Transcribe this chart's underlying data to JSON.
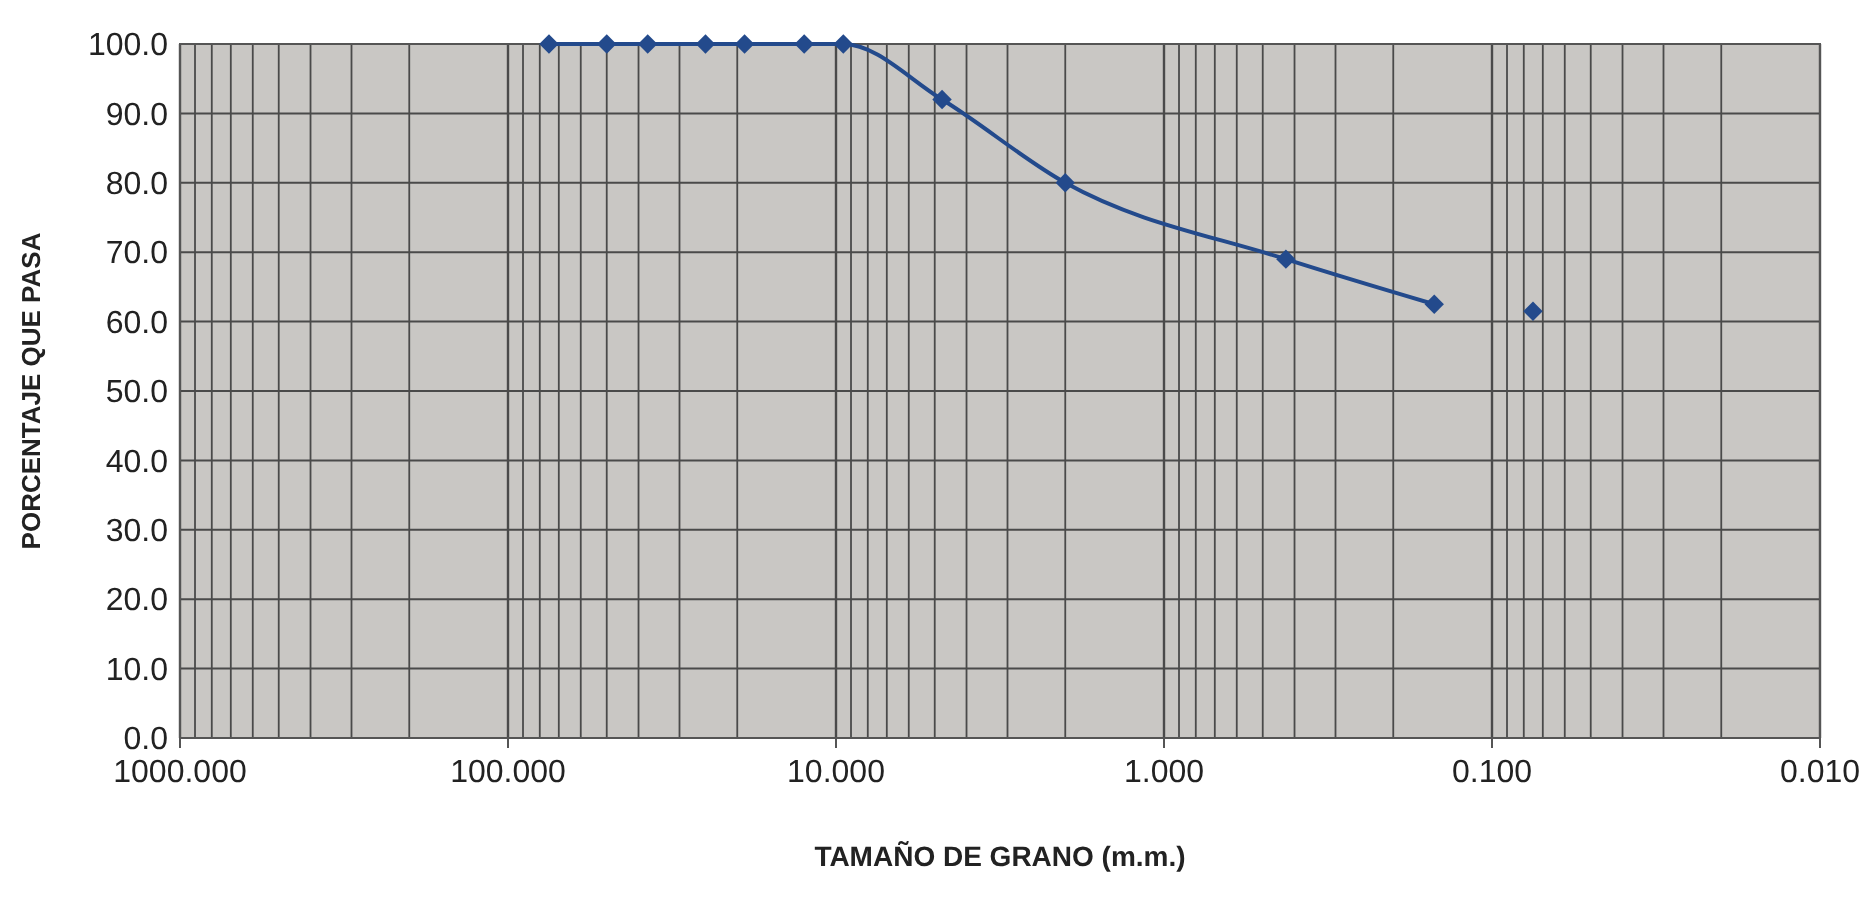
{
  "chart_data": {
    "type": "line",
    "xlabel": "TAMAÑO DE GRANO (m.m.)",
    "ylabel": "PORCENTAJE QUE PASA",
    "log": "x",
    "grid": true,
    "marker": "diamond",
    "line_style": "solid",
    "xlim": [
      1000,
      0.01
    ],
    "ylim": [
      0,
      100
    ],
    "xticks": [
      {
        "value": 1000,
        "label": "1000.000"
      },
      {
        "value": 900,
        "label": null
      },
      {
        "value": 800,
        "label": null
      },
      {
        "value": 700,
        "label": null
      },
      {
        "value": 600,
        "label": null
      },
      {
        "value": 500,
        "label": null
      },
      {
        "value": 400,
        "label": null
      },
      {
        "value": 300,
        "label": null
      },
      {
        "value": 200,
        "label": null
      },
      {
        "value": 100,
        "label": "100.000"
      },
      {
        "value": 90,
        "label": null
      },
      {
        "value": 80,
        "label": null
      },
      {
        "value": 70,
        "label": null
      },
      {
        "value": 60,
        "label": null
      },
      {
        "value": 50,
        "label": null
      },
      {
        "value": 40,
        "label": null
      },
      {
        "value": 30,
        "label": null
      },
      {
        "value": 20,
        "label": null
      },
      {
        "value": 10,
        "label": "10.000"
      },
      {
        "value": 9,
        "label": null
      },
      {
        "value": 8,
        "label": null
      },
      {
        "value": 7,
        "label": null
      },
      {
        "value": 6,
        "label": null
      },
      {
        "value": 5,
        "label": null
      },
      {
        "value": 4,
        "label": null
      },
      {
        "value": 3,
        "label": null
      },
      {
        "value": 2,
        "label": null
      },
      {
        "value": 1,
        "label": "1.000"
      },
      {
        "value": 0.9,
        "label": null
      },
      {
        "value": 0.8,
        "label": null
      },
      {
        "value": 0.7,
        "label": null
      },
      {
        "value": 0.6,
        "label": null
      },
      {
        "value": 0.5,
        "label": null
      },
      {
        "value": 0.4,
        "label": null
      },
      {
        "value": 0.3,
        "label": null
      },
      {
        "value": 0.2,
        "label": null
      },
      {
        "value": 0.1,
        "label": "0.100"
      },
      {
        "value": 0.09,
        "label": null
      },
      {
        "value": 0.08,
        "label": null
      },
      {
        "value": 0.07,
        "label": null
      },
      {
        "value": 0.06,
        "label": null
      },
      {
        "value": 0.05,
        "label": null
      },
      {
        "value": 0.04,
        "label": null
      },
      {
        "value": 0.03,
        "label": null
      },
      {
        "value": 0.02,
        "label": null
      },
      {
        "value": 0.01,
        "label": "0.010"
      }
    ],
    "yticks": [
      {
        "value": 0,
        "label": "0.0"
      },
      {
        "value": 10,
        "label": "10.0"
      },
      {
        "value": 20,
        "label": "20.0"
      },
      {
        "value": 30,
        "label": "30.0"
      },
      {
        "value": 40,
        "label": "40.0"
      },
      {
        "value": 50,
        "label": "50.0"
      },
      {
        "value": 60,
        "label": "60.0"
      },
      {
        "value": 70,
        "label": "70.0"
      },
      {
        "value": 80,
        "label": "80.0"
      },
      {
        "value": 90,
        "label": "90.0"
      },
      {
        "value": 100,
        "label": "100.0"
      }
    ],
    "series": [
      {
        "type": "line",
        "color": "#234a8c",
        "x": [
          75,
          50,
          37.5,
          25,
          19,
          12.5,
          9.5,
          4.75,
          2,
          0.425,
          0.15
        ],
        "values": [
          100,
          100,
          100,
          100,
          100,
          100,
          100,
          92,
          80,
          69,
          62.5
        ]
      },
      {
        "type": "scatter",
        "color": "#234a8c",
        "x": [
          0.075
        ],
        "values": [
          61.5
        ]
      }
    ]
  }
}
